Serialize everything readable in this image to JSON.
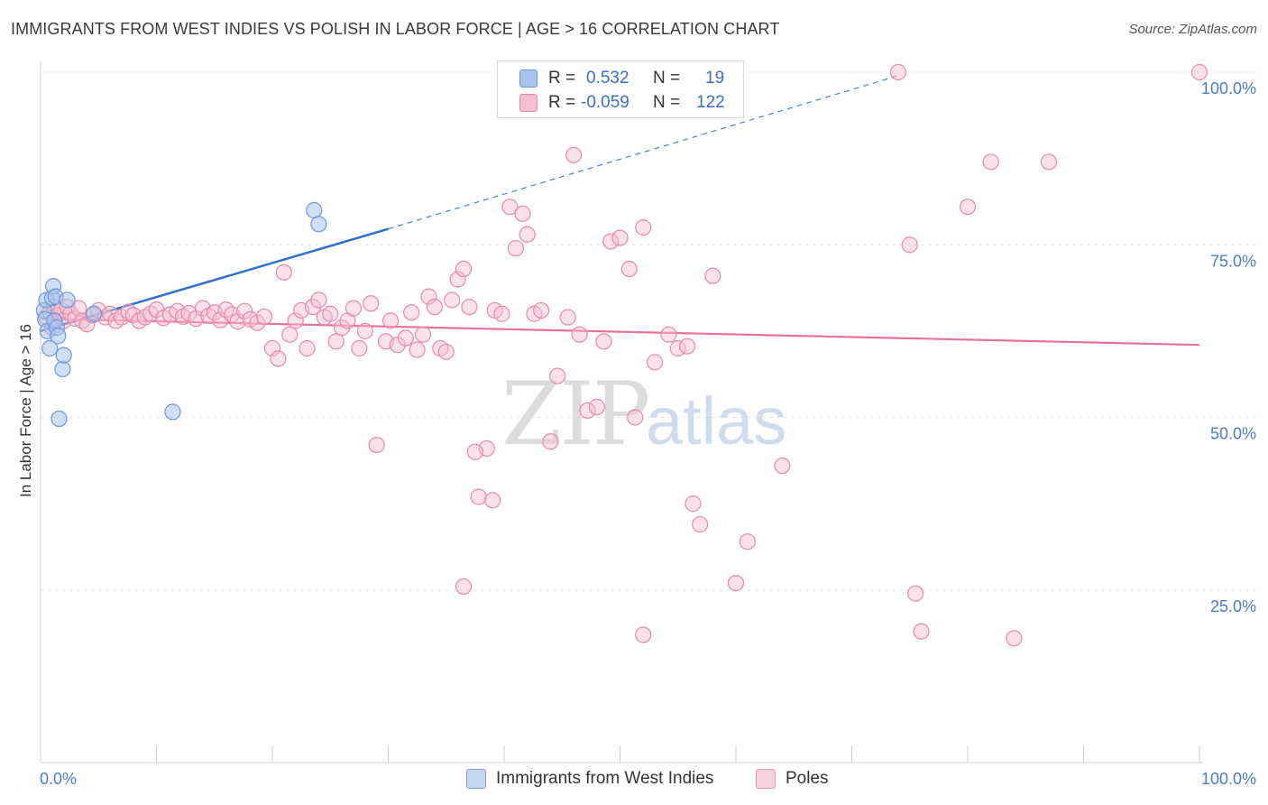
{
  "header": {
    "title": "IMMIGRANTS FROM WEST INDIES VS POLISH IN LABOR FORCE | AGE > 16 CORRELATION CHART",
    "source": "Source: ZipAtlas.com"
  },
  "watermark": {
    "zip": "ZIP",
    "atlas": "atlas"
  },
  "legend": {
    "rows": [
      {
        "r_label": "R =",
        "r_value": "0.532",
        "n_label": "N =",
        "n_value": "19",
        "color": "#a8c4ee",
        "stroke": "#6d98d8"
      },
      {
        "r_label": "R =",
        "r_value": "-0.059",
        "n_label": "N =",
        "n_value": "122",
        "color": "#f6bfd0",
        "stroke": "#e889a8"
      }
    ]
  },
  "bottom_legend": [
    {
      "label": "Immigrants from West Indies",
      "color": "#c4d7f3",
      "stroke": "#7aa0dc"
    },
    {
      "label": "Poles",
      "color": "#f8d0dc",
      "stroke": "#e59ab2"
    }
  ],
  "chart_data": {
    "type": "scatter",
    "title": "IMMIGRANTS FROM WEST INDIES VS POLISH IN LABOR FORCE | AGE > 16 CORRELATION CHART",
    "xlabel": "",
    "ylabel": "In Labor Force | Age > 16",
    "xlim": [
      0,
      100
    ],
    "ylim": [
      0,
      102
    ],
    "x_tick_labels": [
      "0.0%",
      "100.0%"
    ],
    "y_ticks": [
      25,
      50,
      75,
      100
    ],
    "y_tick_labels": [
      "25.0%",
      "50.0%",
      "75.0%",
      "100.0%"
    ],
    "grid": true,
    "series": [
      {
        "name": "Immigrants from West Indies",
        "color": "#a8c4ee",
        "stroke": "#6d98d8",
        "points": [
          [
            0.3,
            65.5
          ],
          [
            0.4,
            64.2
          ],
          [
            0.5,
            67.0
          ],
          [
            0.6,
            62.5
          ],
          [
            0.8,
            60.0
          ],
          [
            1.0,
            67.3
          ],
          [
            1.1,
            69.0
          ],
          [
            1.2,
            64.0
          ],
          [
            1.3,
            67.5
          ],
          [
            1.4,
            63.0
          ],
          [
            1.5,
            61.8
          ],
          [
            1.6,
            49.8
          ],
          [
            1.9,
            57.0
          ],
          [
            2.0,
            59.0
          ],
          [
            2.3,
            67.0
          ],
          [
            4.6,
            65.0
          ],
          [
            11.4,
            50.8
          ],
          [
            23.6,
            80.0
          ],
          [
            24.0,
            78.0
          ]
        ],
        "trend": {
          "x0": 0,
          "y0": 62.5,
          "x1": 30,
          "y1": 77.3,
          "dash_x1": 74,
          "dash_y1": 99.5
        }
      },
      {
        "name": "Poles",
        "color": "#f6bfd0",
        "stroke": "#e889a8",
        "points": [
          [
            0.5,
            64.5
          ],
          [
            0.8,
            65.3
          ],
          [
            1.0,
            63.0
          ],
          [
            1.2,
            66.0
          ],
          [
            1.5,
            64.8
          ],
          [
            1.8,
            65.5
          ],
          [
            2.0,
            64.0
          ],
          [
            2.3,
            66.0
          ],
          [
            2.6,
            65.0
          ],
          [
            3.0,
            64.3
          ],
          [
            3.3,
            65.8
          ],
          [
            3.6,
            64.0
          ],
          [
            4.0,
            63.5
          ],
          [
            4.5,
            64.8
          ],
          [
            5.0,
            65.5
          ],
          [
            5.6,
            64.5
          ],
          [
            6.0,
            65.0
          ],
          [
            6.5,
            64.0
          ],
          [
            7.0,
            64.5
          ],
          [
            7.6,
            65.3
          ],
          [
            8.0,
            64.8
          ],
          [
            8.5,
            64.0
          ],
          [
            9.0,
            64.5
          ],
          [
            9.5,
            65.0
          ],
          [
            10.0,
            65.6
          ],
          [
            10.6,
            64.4
          ],
          [
            11.2,
            64.9
          ],
          [
            11.8,
            65.4
          ],
          [
            12.3,
            64.6
          ],
          [
            12.8,
            65.1
          ],
          [
            13.4,
            64.3
          ],
          [
            14.0,
            65.8
          ],
          [
            14.5,
            64.7
          ],
          [
            15.0,
            65.2
          ],
          [
            15.5,
            64.1
          ],
          [
            16.0,
            65.6
          ],
          [
            16.5,
            64.9
          ],
          [
            17.0,
            63.9
          ],
          [
            17.6,
            65.4
          ],
          [
            18.1,
            64.2
          ],
          [
            18.7,
            63.7
          ],
          [
            19.3,
            64.6
          ],
          [
            20.0,
            60.0
          ],
          [
            20.5,
            58.5
          ],
          [
            21.0,
            71.0
          ],
          [
            21.5,
            62.0
          ],
          [
            22.0,
            64.0
          ],
          [
            22.5,
            65.5
          ],
          [
            23.0,
            60.0
          ],
          [
            23.5,
            66.0
          ],
          [
            24.0,
            67.0
          ],
          [
            24.5,
            64.5
          ],
          [
            25.0,
            65.0
          ],
          [
            25.5,
            61.0
          ],
          [
            26.0,
            63.0
          ],
          [
            26.5,
            64.0
          ],
          [
            27.0,
            65.8
          ],
          [
            27.5,
            60.0
          ],
          [
            28.0,
            62.5
          ],
          [
            28.5,
            66.5
          ],
          [
            29.0,
            46.0
          ],
          [
            29.8,
            61.0
          ],
          [
            30.2,
            64.0
          ],
          [
            30.8,
            60.5
          ],
          [
            31.5,
            61.5
          ],
          [
            32.0,
            65.2
          ],
          [
            32.5,
            59.8
          ],
          [
            33.0,
            62.0
          ],
          [
            33.5,
            67.5
          ],
          [
            34.0,
            66.0
          ],
          [
            34.5,
            60.0
          ],
          [
            35.0,
            59.5
          ],
          [
            35.5,
            67.0
          ],
          [
            36.0,
            70.0
          ],
          [
            36.5,
            71.5
          ],
          [
            37.0,
            66.0
          ],
          [
            37.8,
            38.5
          ],
          [
            38.5,
            45.5
          ],
          [
            39.2,
            65.5
          ],
          [
            39.8,
            65.0
          ],
          [
            40.5,
            80.5
          ],
          [
            41.0,
            74.5
          ],
          [
            41.6,
            79.5
          ],
          [
            42.0,
            76.5
          ],
          [
            42.6,
            65.0
          ],
          [
            43.2,
            65.5
          ],
          [
            44.0,
            46.5
          ],
          [
            44.6,
            56.0
          ],
          [
            45.5,
            64.5
          ],
          [
            46.0,
            88.0
          ],
          [
            46.5,
            62.0
          ],
          [
            47.2,
            51.0
          ],
          [
            48.0,
            51.5
          ],
          [
            48.6,
            61.0
          ],
          [
            49.2,
            75.5
          ],
          [
            50.0,
            76.0
          ],
          [
            50.8,
            71.5
          ],
          [
            51.3,
            50.0
          ],
          [
            52.0,
            77.5
          ],
          [
            53.0,
            58.0
          ],
          [
            54.2,
            62.0
          ],
          [
            55.0,
            60.0
          ],
          [
            55.8,
            60.3
          ],
          [
            56.3,
            37.5
          ],
          [
            56.9,
            34.5
          ],
          [
            58.0,
            70.5
          ],
          [
            60.0,
            26.0
          ],
          [
            61.0,
            32.0
          ],
          [
            64.0,
            43.0
          ],
          [
            74.0,
            100.0
          ],
          [
            75.0,
            75.0
          ],
          [
            75.5,
            24.5
          ],
          [
            76.0,
            19.0
          ],
          [
            80.0,
            80.5
          ],
          [
            82.0,
            87.0
          ],
          [
            84.0,
            18.0
          ],
          [
            87.0,
            87.0
          ],
          [
            100.0,
            100.0
          ],
          [
            36.5,
            25.5
          ],
          [
            52.0,
            18.5
          ],
          [
            37.5,
            45.0
          ],
          [
            39.0,
            38.0
          ]
        ],
        "trend": {
          "x0": 0,
          "y0": 64.3,
          "x1": 100,
          "y1": 60.5
        }
      }
    ]
  }
}
